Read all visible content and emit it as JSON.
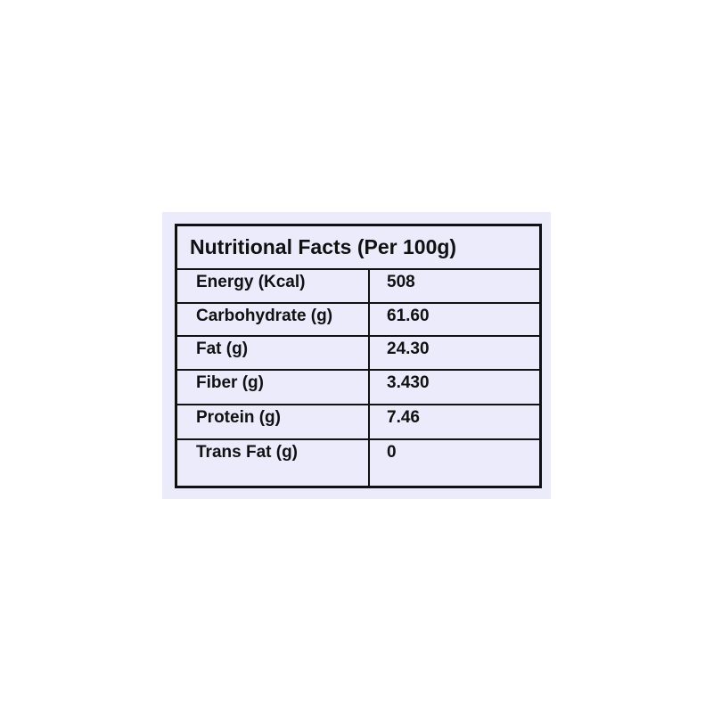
{
  "title": "Nutritional Facts (Per 100g)",
  "rows": [
    {
      "label": "Energy (Kcal)",
      "value": "508"
    },
    {
      "label": "Carbohydrate (g)",
      "value": "61.60"
    },
    {
      "label": "Fat (g)",
      "value": "24.30"
    },
    {
      "label": "Fiber (g)",
      "value": "3.430"
    },
    {
      "label": "Protein (g)",
      "value": "7.46"
    },
    {
      "label": "Trans Fat (g)",
      "value": "0"
    }
  ],
  "colors": {
    "background": "#ECEBFB",
    "border": "#111111"
  }
}
